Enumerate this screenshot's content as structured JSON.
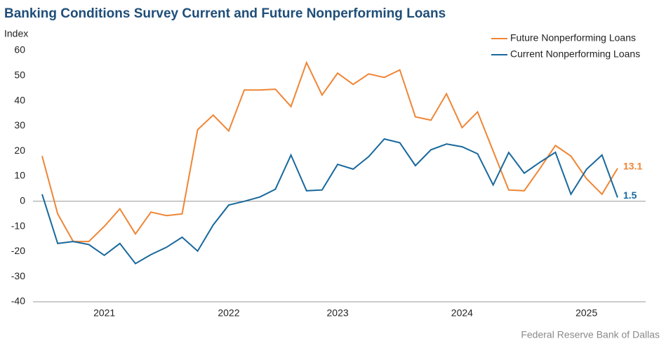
{
  "chart_data": {
    "type": "line",
    "title": "Banking Conditions Survey Current and Future Nonperforming Loans",
    "y_label": "Index",
    "source": "Federal Reserve Bank of Dallas",
    "categories": [
      null,
      null,
      null,
      null,
      "2021",
      null,
      null,
      null,
      null,
      null,
      null,
      null,
      "2022",
      null,
      null,
      null,
      null,
      null,
      null,
      "2023",
      null,
      null,
      null,
      null,
      null,
      null,
      null,
      "2024",
      null,
      null,
      null,
      null,
      null,
      null,
      null,
      "2025",
      null,
      null
    ],
    "series": [
      {
        "name": "Future Nonperforming Loans",
        "color": "#ef8535",
        "values": [
          18,
          -5,
          -16,
          -16,
          -10,
          -3,
          -13,
          -4.3,
          -5.7,
          -5,
          28.5,
          34.3,
          28,
          44.3,
          44.3,
          44.6,
          37.7,
          55.2,
          42.3,
          51,
          46.5,
          50.7,
          49.3,
          52.3,
          33.6,
          32.3,
          42.8,
          29.3,
          35.6,
          20,
          4.5,
          4.2,
          13,
          22.2,
          18,
          9,
          2.8,
          13.1
        ]
      },
      {
        "name": "Current Nonperforming Loans",
        "color": "#18689c",
        "values": [
          2.8,
          -16.8,
          -16,
          -17.2,
          -21.5,
          -16.8,
          -24.8,
          -21.2,
          -18.3,
          -14.3,
          -19.8,
          -9.4,
          -1.5,
          0,
          1.7,
          4.8,
          18.4,
          4.2,
          4.5,
          14.7,
          12.8,
          17.8,
          24.8,
          23.3,
          14.2,
          20.5,
          22.8,
          21.7,
          18.9,
          6.5,
          19.4,
          11.2,
          15.5,
          19.5,
          2.8,
          12.7,
          18.4,
          1.5
        ]
      }
    ],
    "ylim": [
      -40,
      60
    ],
    "yticks": [
      -40,
      -30,
      -20,
      -10,
      0,
      10,
      20,
      30,
      40,
      50,
      60
    ],
    "legend": "top-right"
  }
}
